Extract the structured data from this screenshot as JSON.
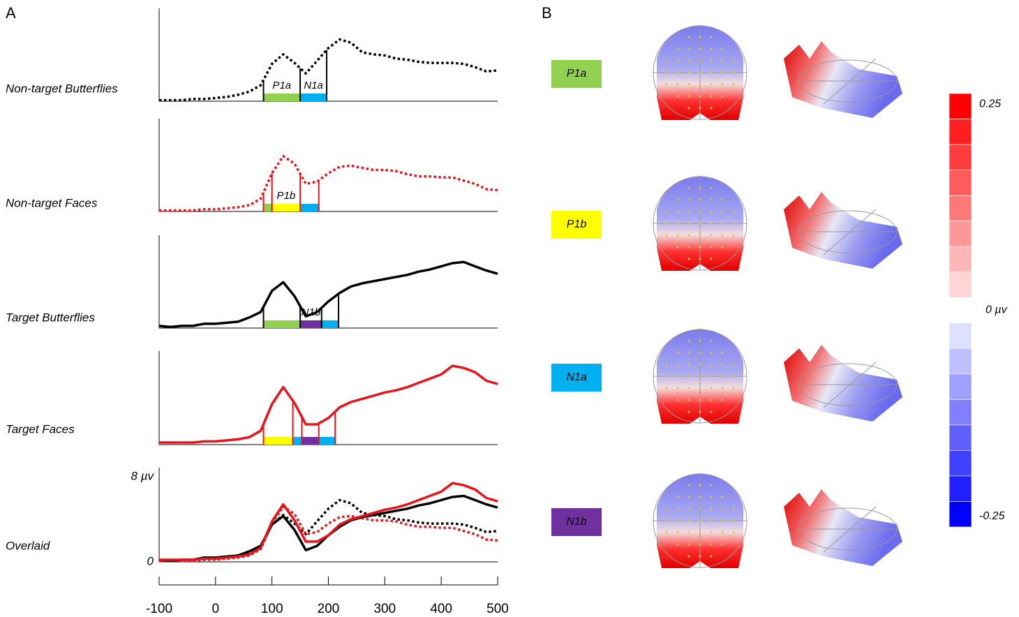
{
  "chart_data": {
    "type": "line",
    "label": "A",
    "x": [
      -100,
      -80,
      -60,
      -40,
      -20,
      0,
      20,
      40,
      60,
      80,
      100,
      120,
      140,
      160,
      180,
      200,
      220,
      240,
      260,
      280,
      300,
      320,
      340,
      360,
      380,
      400,
      420,
      440,
      460,
      480,
      500
    ],
    "xlim": [
      -100,
      500
    ],
    "xticks": [
      -100,
      0,
      100,
      200,
      300,
      400,
      500
    ],
    "ylim": [
      0,
      8
    ],
    "yticks": [
      0,
      {
        "value": 8,
        "label": "8 µv"
      }
    ],
    "overlay_title": "Overlaid",
    "series": [
      {
        "name": "Non-target Butterflies",
        "color": "#000000",
        "dashed": true,
        "values": [
          0.1,
          0.1,
          0.1,
          0.2,
          0.2,
          0.3,
          0.4,
          0.6,
          0.9,
          1.5,
          3.5,
          4.4,
          3.6,
          2.6,
          3.8,
          5.0,
          5.8,
          5.5,
          4.6,
          4.4,
          4.3,
          4.0,
          3.9,
          3.7,
          3.6,
          3.6,
          3.6,
          3.5,
          3.2,
          2.8,
          2.9
        ],
        "windows": [
          {
            "start": 85,
            "end": 150,
            "color": "#92d050",
            "label": "P1a"
          },
          {
            "start": 150,
            "end": 197,
            "color": "#00b0f0",
            "label": "N1a"
          }
        ]
      },
      {
        "name": "Non-target Faces",
        "color": "#e8141b",
        "dashed": true,
        "values": [
          0.1,
          0.1,
          0.1,
          0.1,
          0.2,
          0.2,
          0.3,
          0.4,
          0.6,
          1.2,
          3.6,
          5.2,
          4.5,
          2.6,
          2.8,
          3.6,
          4.2,
          4.3,
          4.1,
          3.9,
          3.9,
          3.8,
          3.5,
          3.3,
          3.3,
          3.2,
          3.2,
          2.9,
          2.6,
          2.1,
          2.0
        ],
        "windows": [
          {
            "start": 85,
            "end": 100,
            "color": "#92d050"
          },
          {
            "start": 100,
            "end": 150,
            "color": "#ffff00",
            "label": "P1b"
          },
          {
            "start": 150,
            "end": 183,
            "color": "#00b0f0"
          }
        ]
      },
      {
        "name": "Target Butterflies",
        "color": "#000000",
        "dashed": false,
        "values": [
          0.2,
          0.1,
          0.2,
          0.2,
          0.4,
          0.4,
          0.5,
          0.6,
          1.0,
          1.5,
          3.5,
          4.3,
          3.0,
          1.1,
          1.5,
          2.5,
          3.3,
          3.9,
          4.2,
          4.4,
          4.6,
          4.8,
          5.0,
          5.3,
          5.5,
          5.8,
          6.1,
          6.2,
          5.8,
          5.4,
          5.1
        ],
        "windows": [
          {
            "start": 85,
            "end": 150,
            "color": "#92d050"
          },
          {
            "start": 150,
            "end": 188,
            "color": "#7030a0",
            "label": "N1b"
          },
          {
            "start": 188,
            "end": 218,
            "color": "#00b0f0"
          }
        ]
      },
      {
        "name": "Target Faces",
        "color": "#e8141b",
        "dashed": false,
        "values": [
          0.2,
          0.2,
          0.2,
          0.2,
          0.3,
          0.3,
          0.4,
          0.5,
          0.7,
          1.3,
          3.8,
          5.4,
          3.9,
          1.9,
          1.9,
          2.5,
          3.5,
          4.0,
          4.3,
          4.6,
          4.9,
          5.1,
          5.4,
          5.8,
          6.2,
          6.6,
          7.4,
          7.2,
          6.8,
          6.0,
          5.7
        ],
        "windows": [
          {
            "start": 85,
            "end": 137,
            "color": "#ffff00"
          },
          {
            "start": 137,
            "end": 153,
            "color": "#00b0f0"
          },
          {
            "start": 153,
            "end": 183,
            "color": "#7030a0"
          },
          {
            "start": 183,
            "end": 212,
            "color": "#00b0f0"
          }
        ]
      }
    ]
  },
  "panel_b": {
    "label": "B",
    "components": [
      {
        "label": "P1a",
        "color": "#92d050"
      },
      {
        "label": "P1b",
        "color": "#ffff00"
      },
      {
        "label": "N1a",
        "color": "#00b0f0"
      },
      {
        "label": "N1b",
        "color": "#7030a0"
      }
    ],
    "colorbar": {
      "clim": [
        -0.263,
        0.263
      ],
      "high_color": "#ff0000",
      "low_color": "#0000ff",
      "ticks": [
        0.25,
        {
          "value": 0,
          "label": "0 µv"
        },
        -0.25
      ]
    }
  }
}
